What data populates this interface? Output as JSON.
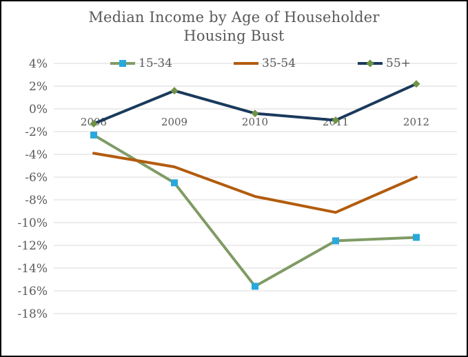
{
  "title": {
    "line1": "Median Income by Age of Householder",
    "line2": "Housing Bust"
  },
  "chart_data": {
    "type": "line",
    "title": "Median Income by Age of Householder",
    "subtitle": "Housing Bust",
    "categories": [
      "2008",
      "2009",
      "2010",
      "2011",
      "2012"
    ],
    "series": [
      {
        "name": "15-34",
        "color": "#7f9b64",
        "marker": "square",
        "marker_color": "#29a8dc",
        "values": [
          -2.3,
          -6.5,
          -15.6,
          -11.6,
          -11.3
        ]
      },
      {
        "name": "35-54",
        "color": "#b25c0e",
        "marker": "none",
        "marker_color": "",
        "values": [
          -3.9,
          -5.1,
          -7.7,
          -9.1,
          -6.0
        ]
      },
      {
        "name": "55+",
        "color": "#1a3a5c",
        "marker": "diamond",
        "marker_color": "#6f9244",
        "values": [
          -1.3,
          1.6,
          -0.4,
          -1.0,
          2.2
        ]
      }
    ],
    "y_ticks": [
      {
        "value": 4,
        "label": "4%"
      },
      {
        "value": 2,
        "label": "2%"
      },
      {
        "value": 0,
        "label": "0%"
      },
      {
        "value": -2,
        "label": "-2%"
      },
      {
        "value": -4,
        "label": "-4%"
      },
      {
        "value": -6,
        "label": "-6%"
      },
      {
        "value": -8,
        "label": "-8%"
      },
      {
        "value": -10,
        "label": "-10%"
      },
      {
        "value": -12,
        "label": "-12%"
      },
      {
        "value": -14,
        "label": "-14%"
      },
      {
        "value": -16,
        "label": "-16%"
      },
      {
        "value": -18,
        "label": "-18%"
      }
    ],
    "ylim": [
      -18,
      4
    ],
    "xlabel": "",
    "ylabel": "",
    "grid": true,
    "legend_position": "top",
    "x_label_position": "at-zero-line"
  },
  "colors": {
    "grid": "#d9d9d9",
    "axis_text": "#595959",
    "title_text": "#595959",
    "background": "#ffffff",
    "frame": "#000000"
  }
}
